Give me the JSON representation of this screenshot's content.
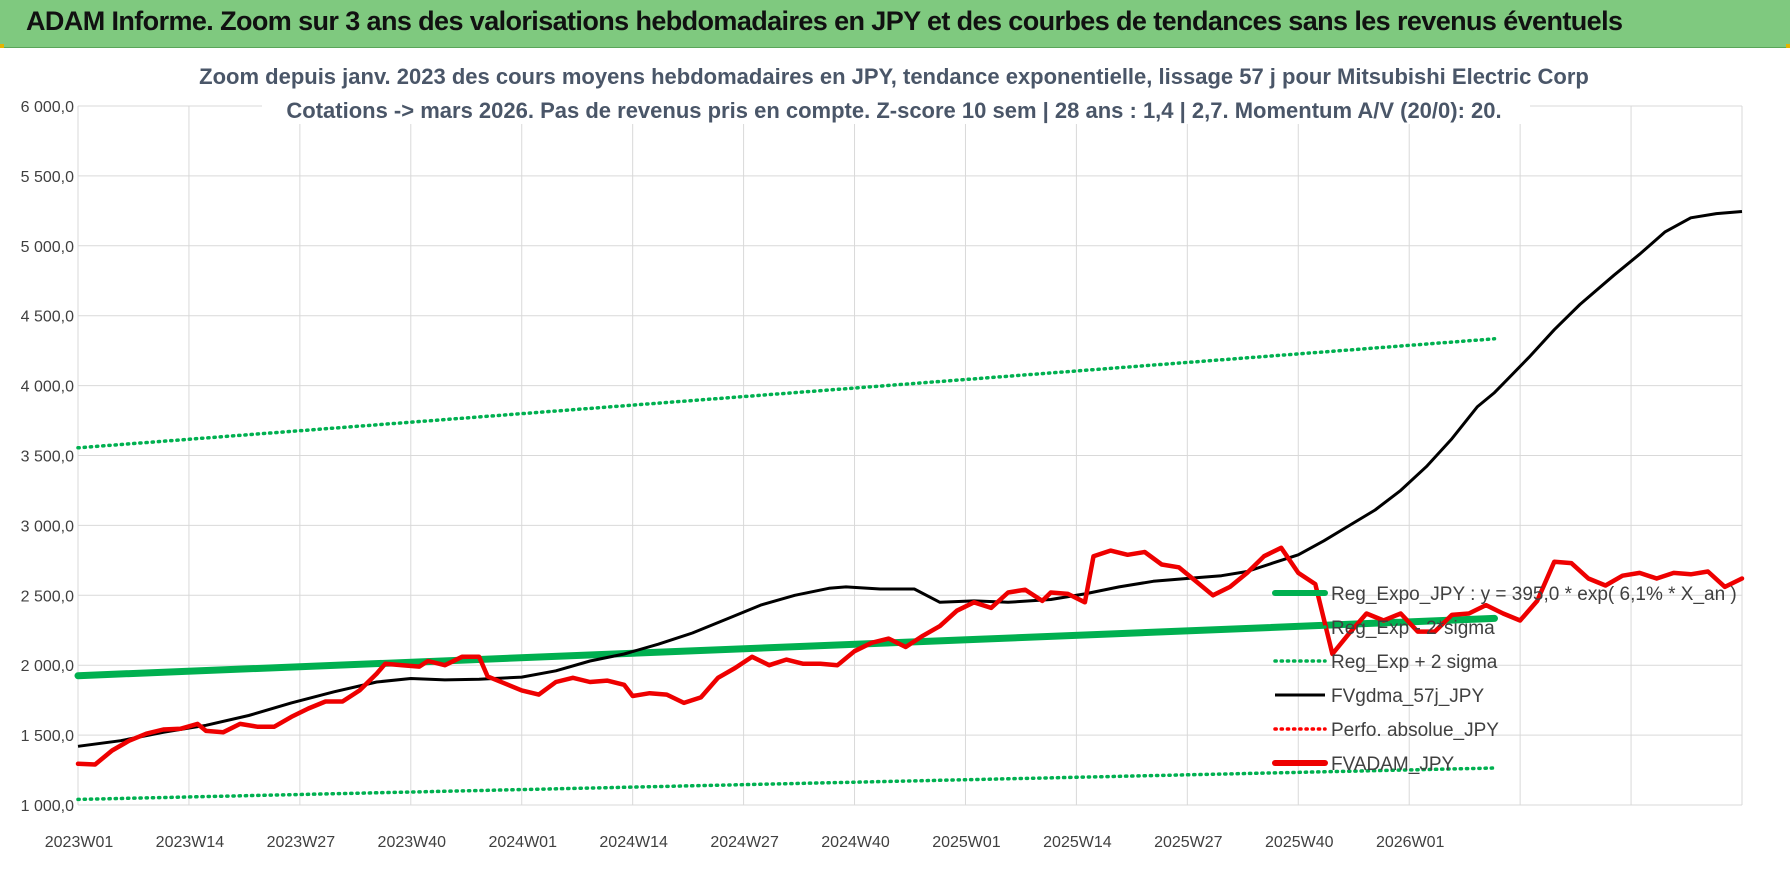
{
  "banner": {
    "title": "ADAM Informe. Zoom sur 3 ans des valorisations hebdomadaires en JPY et des courbes de tendances sans les revenus éventuels"
  },
  "chart_data": {
    "type": "line",
    "subtitle_lines": [
      "Zoom depuis janv. 2023 des cours moyens hebdomadaires en JPY, tendance exponentielle, lissage 57 j pour Mitsubishi Electric Corp",
      "Cotations -> mars 2026. Pas de revenus pris en compte. Z-score 10 sem | 28 ans : 1,4 | 2,7. Momentum A/V (20/0): 20."
    ],
    "x_tick_labels": [
      "2023W01",
      "2023W14",
      "2023W27",
      "2023W40",
      "2024W01",
      "2024W14",
      "2024W27",
      "2024W40",
      "2025W01",
      "2025W14",
      "2025W27",
      "2025W40",
      "2026W01"
    ],
    "week_count": 167,
    "ylim": [
      1000,
      6000
    ],
    "y_ticks": [
      1000,
      1500,
      2000,
      2500,
      3000,
      3500,
      4000,
      4500,
      5000,
      5500,
      6000
    ],
    "y_tick_labels": [
      "1 000,0",
      "1 500,0",
      "2 000,0",
      "2 500,0",
      "3 000,0",
      "3 500,0",
      "4 000,0",
      "4 500,0",
      "5 000,0",
      "5 500,0",
      "6 000,0"
    ],
    "grid": true,
    "legend_position": "right",
    "series": [
      {
        "name": "Reg_Expo_JPY : y = 395,0 * exp( 6,1% *  X_an )",
        "color": "#00b050",
        "style": "solid-thick",
        "points": [
          [
            0,
            1925
          ],
          [
            166,
            2335
          ]
        ]
      },
      {
        "name": "Reg_Exp - 2*sigma",
        "color": "#00b050",
        "style": "dotted",
        "points": [
          [
            0,
            1040
          ],
          [
            166,
            1265
          ]
        ]
      },
      {
        "name": "Reg_Exp + 2 sigma",
        "color": "#00b050",
        "style": "dotted",
        "points": [
          [
            0,
            3555
          ],
          [
            166,
            4335
          ]
        ]
      },
      {
        "name": "FVgdma_57j_JPY",
        "color": "#000000",
        "style": "solid",
        "points": [
          [
            0,
            1420
          ],
          [
            5,
            1460
          ],
          [
            10,
            1520
          ],
          [
            15,
            1570
          ],
          [
            20,
            1640
          ],
          [
            25,
            1730
          ],
          [
            30,
            1810
          ],
          [
            35,
            1880
          ],
          [
            39,
            1905
          ],
          [
            43,
            1895
          ],
          [
            47,
            1900
          ],
          [
            52,
            1915
          ],
          [
            56,
            1960
          ],
          [
            60,
            2030
          ],
          [
            64,
            2080
          ],
          [
            68,
            2150
          ],
          [
            72,
            2230
          ],
          [
            76,
            2330
          ],
          [
            80,
            2430
          ],
          [
            84,
            2500
          ],
          [
            88,
            2550
          ],
          [
            90,
            2560
          ],
          [
            94,
            2545
          ],
          [
            98,
            2545
          ],
          [
            101,
            2450
          ],
          [
            105,
            2460
          ],
          [
            109,
            2450
          ],
          [
            114,
            2470
          ],
          [
            118,
            2510
          ],
          [
            122,
            2560
          ],
          [
            126,
            2600
          ],
          [
            131,
            2625
          ],
          [
            134,
            2640
          ],
          [
            137,
            2670
          ],
          [
            140,
            2730
          ],
          [
            143,
            2790
          ],
          [
            146,
            2890
          ],
          [
            149,
            3000
          ],
          [
            152,
            3110
          ],
          [
            155,
            3250
          ],
          [
            158,
            3420
          ],
          [
            161,
            3620
          ],
          [
            164,
            3850
          ],
          [
            166,
            3950
          ],
          [
            170,
            4200
          ],
          [
            173,
            4400
          ],
          [
            176,
            4580
          ],
          [
            180,
            4790
          ],
          [
            183,
            4940
          ],
          [
            186,
            5100
          ],
          [
            189,
            5200
          ],
          [
            192,
            5230
          ],
          [
            195,
            5245
          ]
        ]
      },
      {
        "name": "Perfo. absolue_JPY",
        "color": "#ff0000",
        "style": "dotted",
        "points": []
      },
      {
        "name": "FVADAM_JPY",
        "color": "#ee0000",
        "style": "solid-thick",
        "points": [
          [
            0,
            1295
          ],
          [
            2,
            1290
          ],
          [
            4,
            1390
          ],
          [
            6,
            1460
          ],
          [
            8,
            1510
          ],
          [
            10,
            1540
          ],
          [
            12,
            1545
          ],
          [
            14,
            1580
          ],
          [
            15,
            1530
          ],
          [
            17,
            1520
          ],
          [
            19,
            1580
          ],
          [
            21,
            1560
          ],
          [
            23,
            1560
          ],
          [
            25,
            1630
          ],
          [
            27,
            1690
          ],
          [
            29,
            1740
          ],
          [
            31,
            1740
          ],
          [
            33,
            1820
          ],
          [
            35,
            1940
          ],
          [
            36,
            2010
          ],
          [
            38,
            2000
          ],
          [
            40,
            1990
          ],
          [
            41,
            2030
          ],
          [
            43,
            2000
          ],
          [
            45,
            2060
          ],
          [
            47,
            2060
          ],
          [
            48,
            1920
          ],
          [
            50,
            1870
          ],
          [
            52,
            1820
          ],
          [
            54,
            1790
          ],
          [
            56,
            1880
          ],
          [
            58,
            1910
          ],
          [
            60,
            1880
          ],
          [
            62,
            1890
          ],
          [
            64,
            1860
          ],
          [
            65,
            1780
          ],
          [
            67,
            1800
          ],
          [
            69,
            1790
          ],
          [
            71,
            1730
          ],
          [
            73,
            1770
          ],
          [
            75,
            1910
          ],
          [
            77,
            1980
          ],
          [
            79,
            2060
          ],
          [
            81,
            2000
          ],
          [
            83,
            2040
          ],
          [
            85,
            2010
          ],
          [
            87,
            2010
          ],
          [
            89,
            2000
          ],
          [
            91,
            2100
          ],
          [
            93,
            2160
          ],
          [
            95,
            2190
          ],
          [
            97,
            2130
          ],
          [
            99,
            2210
          ],
          [
            101,
            2280
          ],
          [
            103,
            2390
          ],
          [
            105,
            2450
          ],
          [
            107,
            2410
          ],
          [
            109,
            2520
          ],
          [
            111,
            2540
          ],
          [
            113,
            2460
          ],
          [
            114,
            2520
          ],
          [
            116,
            2510
          ],
          [
            118,
            2450
          ],
          [
            119,
            2780
          ],
          [
            121,
            2820
          ],
          [
            123,
            2790
          ],
          [
            125,
            2810
          ],
          [
            127,
            2720
          ],
          [
            129,
            2700
          ],
          [
            131,
            2600
          ],
          [
            133,
            2500
          ],
          [
            135,
            2560
          ],
          [
            137,
            2660
          ],
          [
            139,
            2780
          ],
          [
            141,
            2840
          ],
          [
            143,
            2660
          ],
          [
            145,
            2580
          ],
          [
            147,
            2080
          ],
          [
            149,
            2230
          ],
          [
            151,
            2370
          ],
          [
            153,
            2320
          ],
          [
            155,
            2370
          ],
          [
            157,
            2240
          ],
          [
            159,
            2240
          ],
          [
            161,
            2360
          ],
          [
            163,
            2370
          ],
          [
            165,
            2430
          ],
          [
            167,
            2370
          ],
          [
            169,
            2320
          ],
          [
            171,
            2460
          ],
          [
            173,
            2740
          ],
          [
            175,
            2730
          ],
          [
            177,
            2620
          ],
          [
            179,
            2570
          ],
          [
            181,
            2640
          ],
          [
            183,
            2660
          ],
          [
            185,
            2620
          ],
          [
            187,
            2660
          ],
          [
            189,
            2650
          ],
          [
            191,
            2670
          ],
          [
            193,
            2560
          ],
          [
            195,
            2620
          ]
        ]
      }
    ]
  }
}
